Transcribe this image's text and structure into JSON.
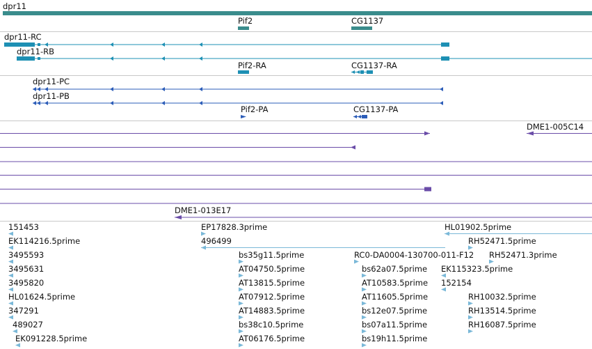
{
  "genes": {
    "gene_label": "dpr11",
    "pif2_label": "Pif2",
    "cg1137_label": "CG1137",
    "colors": {
      "gene": "#3a8c8c"
    }
  },
  "transcripts": {
    "rc_label": "dpr11-RC",
    "rb_label": "dpr11-RB",
    "pif2_ra_label": "Pif2-RA",
    "cg1137_ra_label": "CG1137-RA",
    "colors": {
      "transcript": "#1e90b4"
    }
  },
  "proteins": {
    "pc_label": "dpr11-PC",
    "pb_label": "dpr11-PB",
    "pif2_pa_label": "Pif2-PA",
    "cg1137_pa_label": "CG1137-PA",
    "colors": {
      "protein": "#2b5cb8"
    }
  },
  "cdna": {
    "dme1_005_label": "DME1-005C14",
    "dme1_013_label": "DME1-013E17",
    "colors": {
      "cdna": "#6a4ca8"
    }
  },
  "ests": {
    "col1": [
      "151453",
      "EK114216.5prime",
      "3495593",
      "3495631",
      "3495820",
      "HL01624.5prime",
      "347291",
      "489027",
      "EK091228.5prime"
    ],
    "col2": [
      "EP17828.3prime",
      "496499",
      "bs35g11.5prime",
      "AT04750.5prime",
      "AT13815.5prime",
      "AT07912.5prime",
      "AT14883.5prime",
      "bs38c10.5prime",
      "AT06176.5prime"
    ],
    "col3": [
      "RC0-DA0004-130700-011-F12",
      "bs62a07.5prime",
      "AT10583.5prime",
      "AT11605.5prime",
      "bs12e07.5prime",
      "bs07a11.5prime",
      "bs19h11.5prime"
    ],
    "col4": [
      "HL01902.5prime",
      "RH52471.5prime",
      "RH52471.3prime",
      "EK115323.5prime",
      "152154",
      "RH10032.5prime",
      "RH13514.5prime",
      "RH16087.5prime"
    ],
    "colors": {
      "est": "#7ab8d8"
    }
  }
}
